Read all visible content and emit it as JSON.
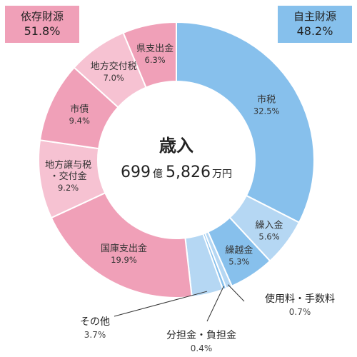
{
  "boxes": {
    "dependent": {
      "label": "依存財源",
      "pct": "51.8%",
      "color": "#f0a0b8"
    },
    "independent": {
      "label": "自主財源",
      "pct": "48.2%",
      "color": "#86c0ec"
    }
  },
  "center": {
    "title": "歳入",
    "amount_num1": "699",
    "amount_unit1": "億",
    "amount_num2": "5,826",
    "amount_unit2": "万円"
  },
  "chart_data": {
    "type": "pie",
    "title": "",
    "slices": [
      {
        "name": "市税",
        "value": 32.5,
        "label": "32.5%",
        "color": "#87c0ec"
      },
      {
        "name": "繰入金",
        "value": 5.6,
        "label": "5.6%",
        "color": "#b5d7f3"
      },
      {
        "name": "繰越金",
        "value": 5.3,
        "label": "5.3%",
        "color": "#87c0ec"
      },
      {
        "name": "使用料・手数料",
        "value": 0.7,
        "label": "0.7%",
        "color": "#b5d7f3"
      },
      {
        "name": "分担金・負担金",
        "value": 0.4,
        "label": "0.4%",
        "color": "#87c0ec"
      },
      {
        "name": "その他",
        "value": 3.7,
        "label": "3.7%",
        "color": "#b5d7f3"
      },
      {
        "name": "国庫支出金",
        "value": 19.9,
        "label": "19.9%",
        "color": "#f0a0b8"
      },
      {
        "name": "地方譲与税・交付金",
        "name_lines": [
          "地方譲与税",
          "・交付金"
        ],
        "value": 9.2,
        "label": "9.2%",
        "color": "#f6c2d2"
      },
      {
        "name": "市債",
        "value": 9.4,
        "label": "9.4%",
        "color": "#f0a0b8"
      },
      {
        "name": "地方交付税",
        "value": 7.0,
        "label": "7.0%",
        "color": "#f6c2d2"
      },
      {
        "name": "県支出金",
        "value": 6.3,
        "label": "6.3%",
        "color": "#f0a0b8"
      }
    ]
  }
}
